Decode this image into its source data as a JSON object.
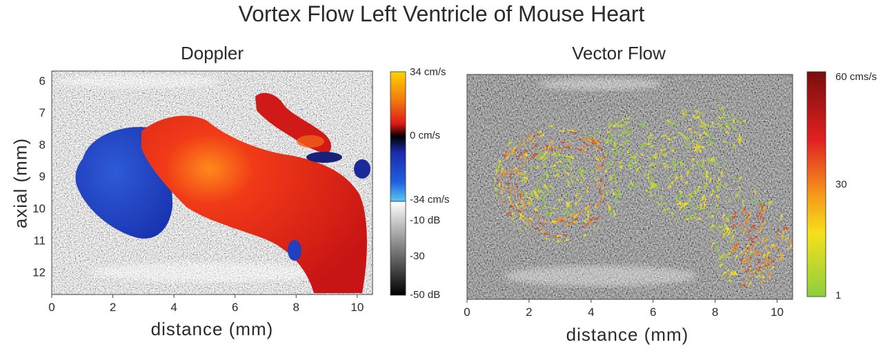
{
  "title": "Vortex Flow Left Ventricle of Mouse Heart",
  "chart_data": [
    {
      "type": "heatmap",
      "title": "Doppler",
      "xlabel": "distance (mm)",
      "ylabel": "axial (mm)",
      "xlim": [
        0,
        10.5
      ],
      "ylim": [
        12.7,
        5.7
      ],
      "xticks": [
        "0",
        "2",
        "4",
        "6",
        "8",
        "10"
      ],
      "yticks": [
        "6",
        "7",
        "8",
        "9",
        "10",
        "11",
        "12"
      ],
      "colorbar_flow": {
        "labels": [
          "34 cm/s",
          "0 cm/s",
          "-34 cm/s"
        ],
        "range": [
          -34,
          34
        ],
        "colors": [
          "#ffd200",
          "#e02020",
          "#000000",
          "#1a3ccc",
          "#5ac8f0"
        ]
      },
      "colorbar_bmode": {
        "labels": [
          "-10 dB",
          "-30",
          "-50 dB"
        ],
        "range": [
          -50,
          -10
        ]
      }
    },
    {
      "type": "vector field",
      "title": "Vector Flow",
      "xlabel": "distance (mm)",
      "xlim": [
        0,
        10.5
      ],
      "xticks": [
        "0",
        "2",
        "4",
        "6",
        "8",
        "10"
      ],
      "colorbar": {
        "labels": [
          "60 cms/s",
          "30",
          "1"
        ],
        "range": [
          1,
          60
        ],
        "colors": [
          "#7f0f0f",
          "#e02020",
          "#f59a1a",
          "#f5e01a",
          "#8ccf3e"
        ]
      }
    }
  ]
}
